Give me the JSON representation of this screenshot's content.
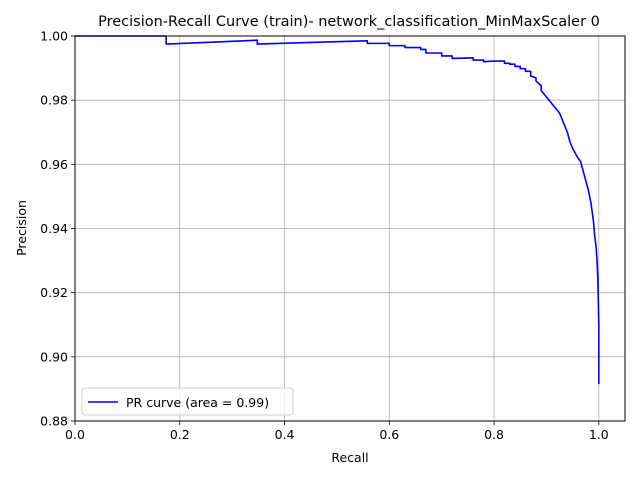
{
  "chart_data": {
    "type": "line",
    "title": "Precision-Recall Curve (train)- network_classification_MinMaxScaler 0",
    "xlabel": "Recall",
    "ylabel": "Precision",
    "xlim": [
      0.0,
      1.05
    ],
    "ylim": [
      0.88,
      1.0
    ],
    "x_ticks": [
      0.0,
      0.2,
      0.4,
      0.6,
      0.8,
      1.0
    ],
    "x_tick_labels": [
      "0.0",
      "0.2",
      "0.4",
      "0.6",
      "0.8",
      "1.0"
    ],
    "y_ticks": [
      0.88,
      0.9,
      0.92,
      0.94,
      0.96,
      0.98,
      1.0
    ],
    "y_tick_labels": [
      "0.88",
      "0.90",
      "0.92",
      "0.94",
      "0.96",
      "0.98",
      "1.00"
    ],
    "grid": true,
    "legend": {
      "position": "lower-left"
    },
    "colors": {
      "series": "#0000ff",
      "grid": "#b0b0b0",
      "axes": "#000000"
    },
    "series": [
      {
        "name": "PR curve (area = 0.99)",
        "x": [
          0.0,
          0.174,
          0.174,
          0.25,
          0.348,
          0.348,
          0.45,
          0.558,
          0.558,
          0.6,
          0.6,
          0.63,
          0.63,
          0.66,
          0.66,
          0.67,
          0.67,
          0.7,
          0.7,
          0.72,
          0.72,
          0.76,
          0.76,
          0.78,
          0.78,
          0.8,
          0.8,
          0.82,
          0.82,
          0.83,
          0.83,
          0.84,
          0.84,
          0.85,
          0.85,
          0.86,
          0.86,
          0.87,
          0.87,
          0.88,
          0.88,
          0.89,
          0.89,
          0.895,
          0.9,
          0.905,
          0.91,
          0.915,
          0.92,
          0.925,
          0.93,
          0.94,
          0.945,
          0.95,
          0.96,
          0.965,
          0.97,
          0.975,
          0.98,
          0.985,
          0.99,
          0.992,
          0.995,
          0.997,
          0.998,
          0.999,
          1.0,
          1.0
        ],
        "y": [
          1.0,
          1.0,
          0.9975,
          0.998,
          0.9987,
          0.9975,
          0.998,
          0.9985,
          0.9977,
          0.9977,
          0.997,
          0.997,
          0.9964,
          0.9964,
          0.9958,
          0.9958,
          0.9947,
          0.9947,
          0.9938,
          0.9938,
          0.993,
          0.9932,
          0.9925,
          0.9925,
          0.992,
          0.9922,
          0.9922,
          0.9922,
          0.9915,
          0.9915,
          0.9912,
          0.9912,
          0.9905,
          0.9905,
          0.9898,
          0.9898,
          0.989,
          0.989,
          0.9875,
          0.987,
          0.986,
          0.9845,
          0.983,
          0.982,
          0.981,
          0.98,
          0.979,
          0.978,
          0.977,
          0.976,
          0.974,
          0.97,
          0.967,
          0.965,
          0.962,
          0.961,
          0.958,
          0.955,
          0.952,
          0.948,
          0.942,
          0.938,
          0.934,
          0.929,
          0.925,
          0.918,
          0.91,
          0.8915
        ]
      }
    ]
  }
}
